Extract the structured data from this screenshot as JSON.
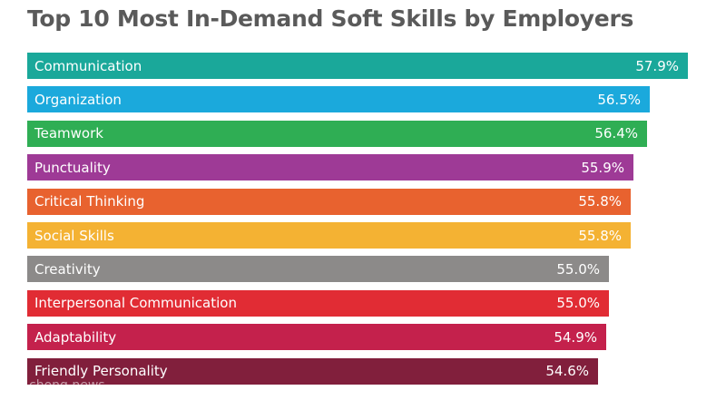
{
  "chart_data": {
    "type": "bar",
    "orientation": "horizontal",
    "title": "Top 10 Most In-Demand Soft Skills by Employers",
    "unit": "%",
    "xlim": [
      0,
      57.9
    ],
    "categories": [
      "Communication",
      "Organization",
      "Teamwork",
      "Punctuality",
      "Critical Thinking",
      "Social Skills",
      "Creativity",
      "Interpersonal Communication",
      "Adaptability",
      "Friendly Personality"
    ],
    "values": [
      57.9,
      56.5,
      56.4,
      55.9,
      55.8,
      55.8,
      55.0,
      55.0,
      54.9,
      54.6
    ],
    "value_labels": [
      "57.9%",
      "56.5%",
      "56.4%",
      "55.9%",
      "55.8%",
      "55.8%",
      "55.0%",
      "55.0%",
      "54.9%",
      "54.6%"
    ],
    "colors": [
      "#1aa89a",
      "#1ba9dc",
      "#2fae54",
      "#9e3a96",
      "#e8622f",
      "#f4b233",
      "#8c8a89",
      "#e12c34",
      "#c4214c",
      "#811f3c"
    ],
    "grid": false,
    "legend": "none"
  },
  "watermark": "chong news"
}
